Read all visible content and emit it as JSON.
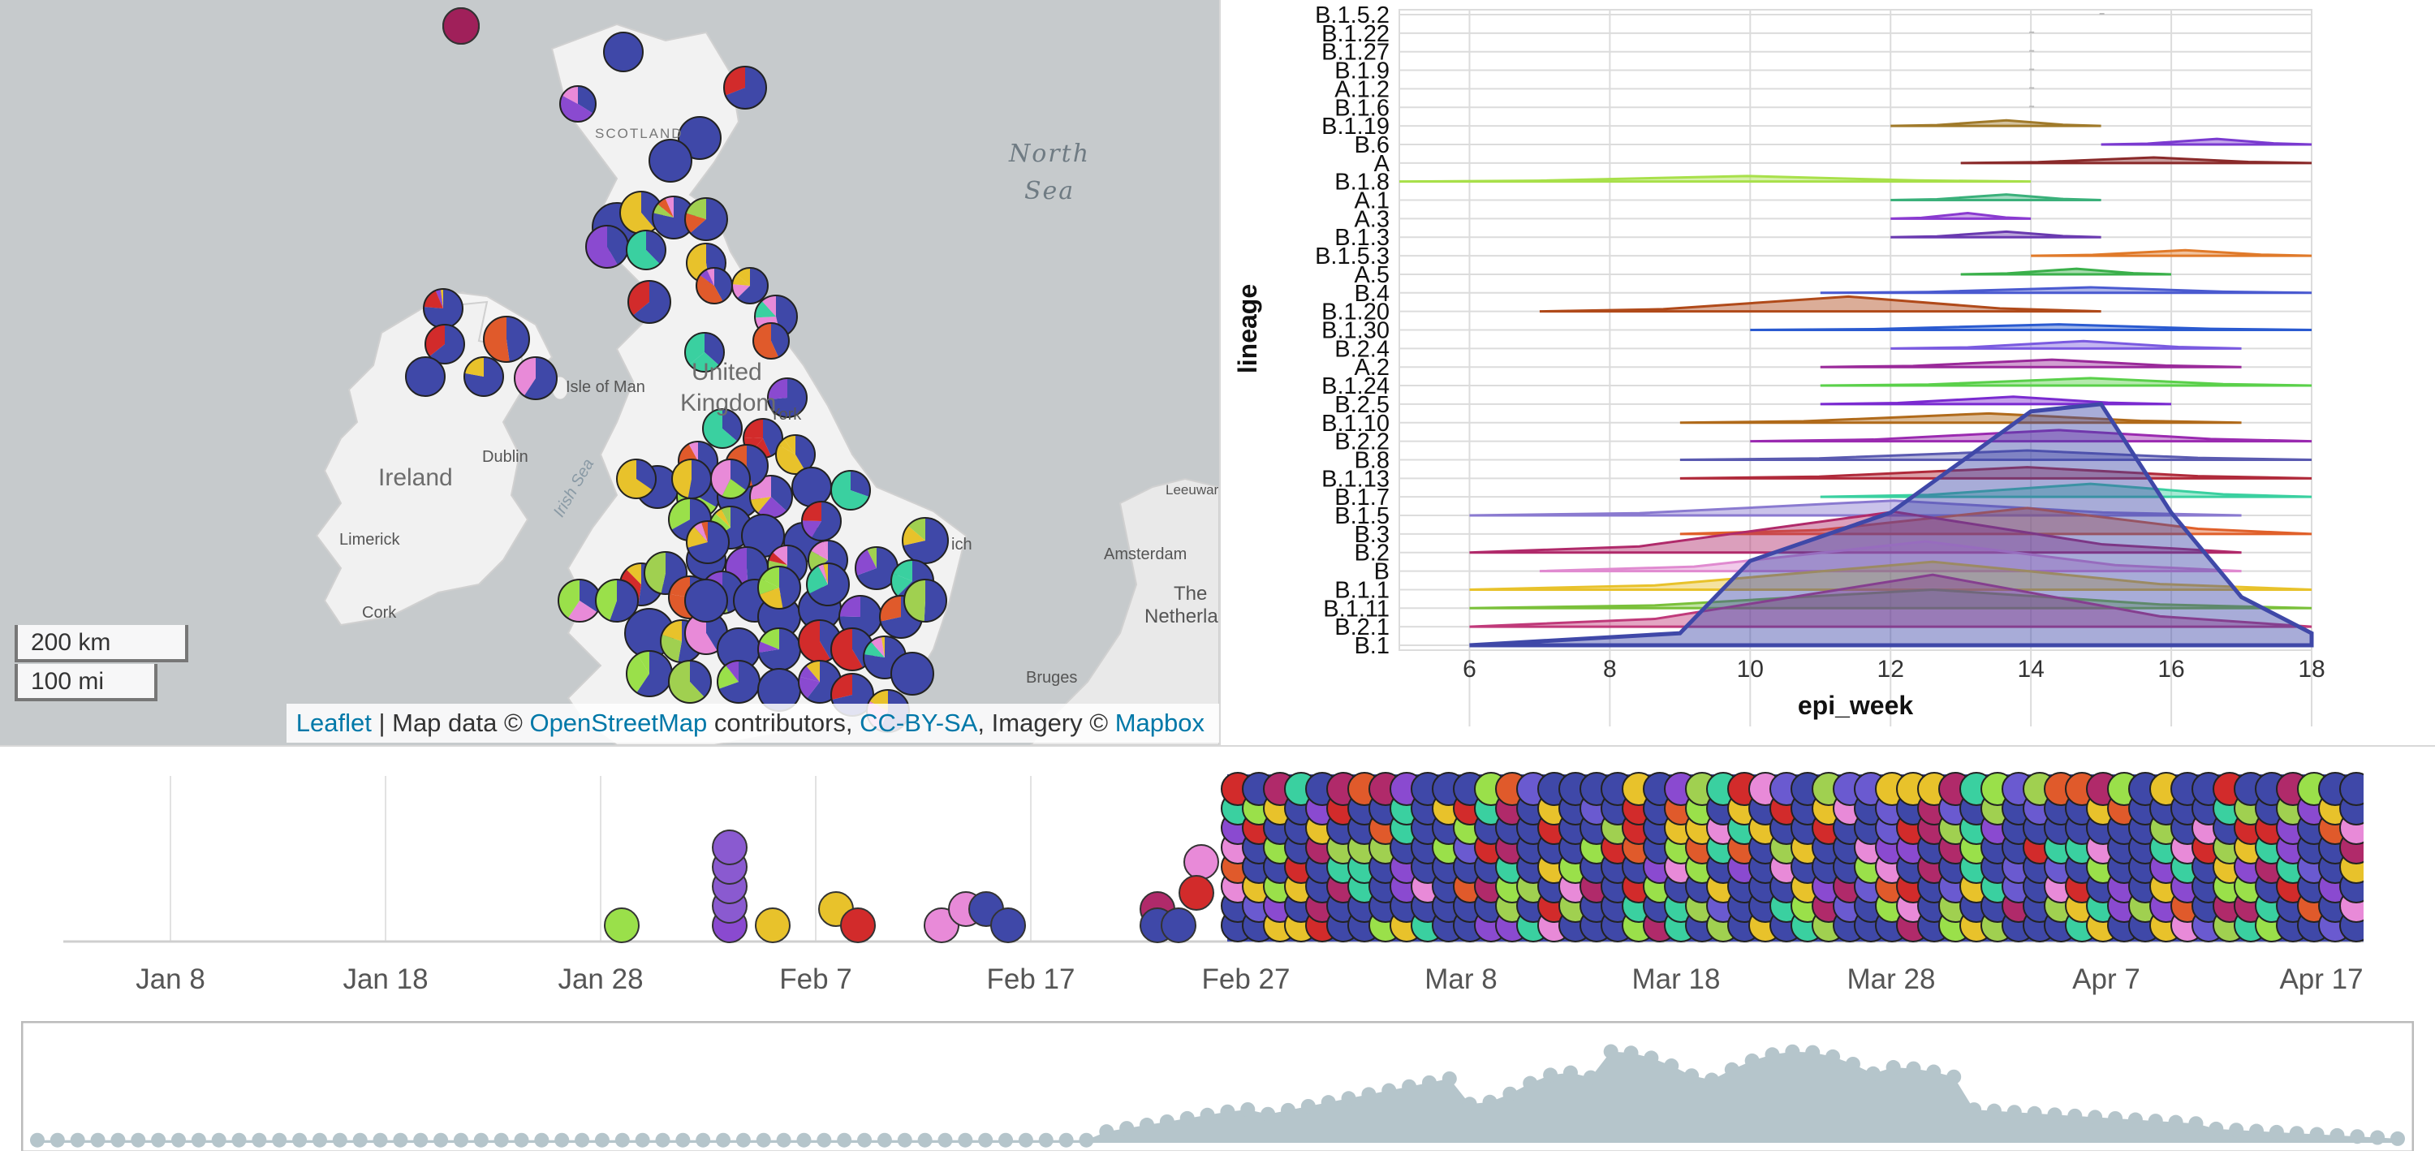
{
  "map": {
    "labels": {
      "north_sea": [
        "North",
        "Sea"
      ],
      "scotland": "SCOTLAND",
      "united_kingdom": [
        "United",
        "Kingdom"
      ],
      "ireland": "Ireland",
      "dublin": "Dublin",
      "limerick": "Limerick",
      "cork": "Cork",
      "isle_of_man": "Isle of Man",
      "irish_sea": "Irish Sea",
      "york": "York",
      "amsterdam": "Amsterdam",
      "leeuwarden": "Leeuwar",
      "the_netherlands": [
        "The",
        "Netherlan"
      ],
      "bruges": "Bruges",
      "norwich": "ich"
    },
    "scale": {
      "km": "200 km",
      "mi": "100 mi"
    },
    "attribution": {
      "leaflet": "Leaflet",
      "sep": " | Map data © ",
      "osm": "OpenStreetMap",
      "contributors": " contributors, ",
      "license": "CC-BY-SA",
      "imagery": ", Imagery © ",
      "mapbox": "Mapbox"
    },
    "pie_palette": [
      "#3f48a8",
      "#e8c22b",
      "#e05a2b",
      "#9ae04a",
      "#e88ad8",
      "#8a4ad0",
      "#d22b2b",
      "#3ad0a0",
      "#a0d050"
    ]
  },
  "ridge_chart": {
    "type": "area",
    "xlabel": "epi_week",
    "ylabel": "lineage",
    "x_ticks": [
      6,
      8,
      10,
      12,
      14,
      16,
      18
    ],
    "xlim": [
      5,
      18
    ],
    "lineages": [
      {
        "name": "B.1.5.2",
        "color": "#cccccc",
        "start": 15,
        "end": 15,
        "peak": 0
      },
      {
        "name": "B.1.22",
        "color": "#cccccc",
        "start": 14,
        "end": 14,
        "peak": 0
      },
      {
        "name": "B.1.27",
        "color": "#cccccc",
        "start": 14,
        "end": 14,
        "peak": 0
      },
      {
        "name": "B.1.9",
        "color": "#cccccc",
        "start": 14,
        "end": 14,
        "peak": 0
      },
      {
        "name": "A.1.2",
        "color": "#cccccc",
        "start": 14,
        "end": 14,
        "peak": 0
      },
      {
        "name": "B.1.6",
        "color": "#cccccc",
        "start": 14,
        "end": 14,
        "peak": 0
      },
      {
        "name": "B.1.19",
        "color": "#a07a2a",
        "start": 12,
        "end": 15,
        "peak": 0.3
      },
      {
        "name": "B.6",
        "color": "#7a3ad0",
        "start": 15,
        "end": 18,
        "peak": 0.3
      },
      {
        "name": "A",
        "color": "#8a2a2a",
        "start": 13,
        "end": 18,
        "peak": 0.3
      },
      {
        "name": "B.1.8",
        "color": "#a8e04a",
        "start": 5,
        "end": 14,
        "peak": 0.3
      },
      {
        "name": "A.1",
        "color": "#3ab07a",
        "start": 12,
        "end": 15,
        "peak": 0.3
      },
      {
        "name": "A.3",
        "color": "#8a3ad0",
        "start": 12,
        "end": 14,
        "peak": 0.3
      },
      {
        "name": "B.1.3",
        "color": "#6a3ab0",
        "start": 12,
        "end": 15,
        "peak": 0.3
      },
      {
        "name": "B.1.5.3",
        "color": "#e07a2a",
        "start": 14,
        "end": 18,
        "peak": 0.3
      },
      {
        "name": "A.5",
        "color": "#3ab04a",
        "start": 13,
        "end": 16,
        "peak": 0.3
      },
      {
        "name": "B.4",
        "color": "#4a5ad0",
        "start": 11,
        "end": 18,
        "peak": 0.3
      },
      {
        "name": "B.1.20",
        "color": "#b04a1a",
        "start": 7,
        "end": 15,
        "peak": 0.8
      },
      {
        "name": "B.1.30",
        "color": "#2a5ad0",
        "start": 10,
        "end": 18,
        "peak": 0.3
      },
      {
        "name": "B.2.4",
        "color": "#7a5ae0",
        "start": 12,
        "end": 17,
        "peak": 0.4
      },
      {
        "name": "A.2",
        "color": "#9a2a9a",
        "start": 11,
        "end": 17,
        "peak": 0.4
      },
      {
        "name": "B.1.24",
        "color": "#5ad04a",
        "start": 11,
        "end": 18,
        "peak": 0.4
      },
      {
        "name": "B.2.5",
        "color": "#7a2ad0",
        "start": 11,
        "end": 16,
        "peak": 0.4
      },
      {
        "name": "B.1.10",
        "color": "#b06a1a",
        "start": 9,
        "end": 17,
        "peak": 0.5
      },
      {
        "name": "B.2.2",
        "color": "#9a2ab0",
        "start": 10,
        "end": 18,
        "peak": 0.6
      },
      {
        "name": "B.8",
        "color": "#5a5ab0",
        "start": 9,
        "end": 18,
        "peak": 0.5
      },
      {
        "name": "B.1.13",
        "color": "#b02a3a",
        "start": 9,
        "end": 18,
        "peak": 0.6
      },
      {
        "name": "B.1.7",
        "color": "#3ad0a0",
        "start": 11,
        "end": 18,
        "peak": 0.7
      },
      {
        "name": "B.1.5",
        "color": "#8a7ad0",
        "start": 6,
        "end": 17,
        "peak": 0.8
      },
      {
        "name": "B.3",
        "color": "#e0602a",
        "start": 9,
        "end": 18,
        "peak": 1.4
      },
      {
        "name": "B.2",
        "color": "#b02a6a",
        "start": 6,
        "end": 17,
        "peak": 2.2
      },
      {
        "name": "B",
        "color": "#e08ad0",
        "start": 7,
        "end": 17,
        "peak": 1.6
      },
      {
        "name": "B.1.1",
        "color": "#e8c22b",
        "start": 6,
        "end": 18,
        "peak": 1.5
      },
      {
        "name": "B.1.11",
        "color": "#7ac03a",
        "start": 6,
        "end": 18,
        "peak": 1.0
      },
      {
        "name": "B.2.1",
        "color": "#c03a7a",
        "start": 6,
        "end": 18,
        "peak": 2.8
      },
      {
        "name": "B.1",
        "color": "#3f48a8",
        "start": 6,
        "end": 18,
        "peak": 13
      }
    ]
  },
  "timeline": {
    "ticks": [
      "Jan 8",
      "Jan 18",
      "Jan 28",
      "Feb 7",
      "Feb 17",
      "Feb 27",
      "Mar 8",
      "Mar 18",
      "Mar 28",
      "Apr 7",
      "Apr 17"
    ],
    "dense_colors": [
      "#3f48a8",
      "#e8c22b",
      "#e05a2b",
      "#9ae04a",
      "#e88ad8",
      "#8a4ad0",
      "#d22b2b",
      "#3ad0a0",
      "#6a5ad0",
      "#a0d050",
      "#b02a6a"
    ]
  },
  "brush": {
    "color": "#b5c5cb"
  }
}
